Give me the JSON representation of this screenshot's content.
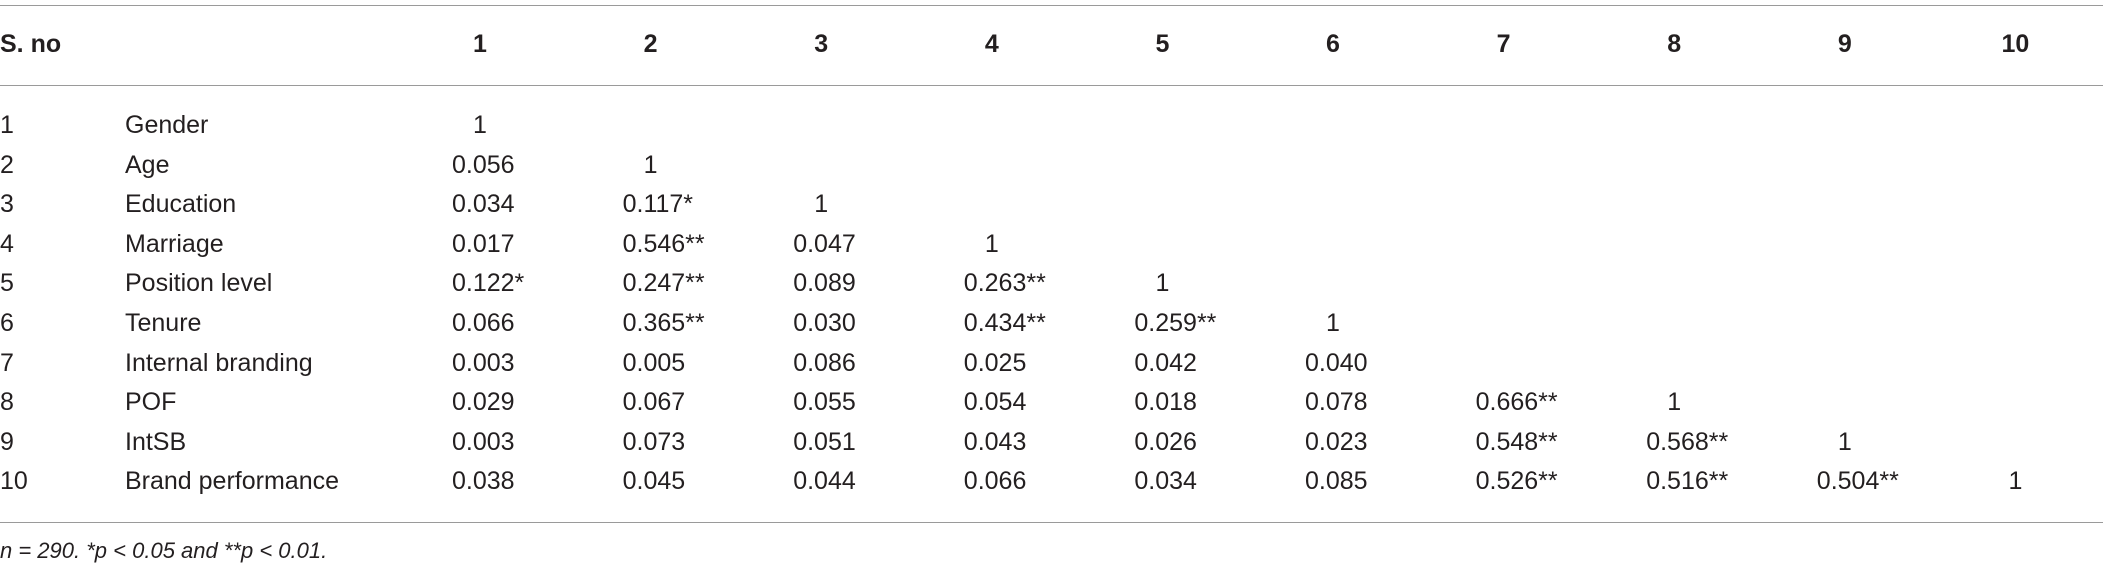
{
  "table": {
    "header": [
      "S. no",
      "1",
      "2",
      "3",
      "4",
      "5",
      "6",
      "7",
      "8",
      "9",
      "10"
    ],
    "rows": [
      {
        "no": "1",
        "name": "Gender",
        "cells": [
          "1"
        ]
      },
      {
        "no": "2",
        "name": "Age",
        "cells": [
          "0.056",
          "1"
        ]
      },
      {
        "no": "3",
        "name": "Education",
        "cells": [
          "0.034",
          "0.117*",
          "1"
        ]
      },
      {
        "no": "4",
        "name": "Marriage",
        "cells": [
          "0.017",
          "0.546**",
          "0.047",
          "1"
        ]
      },
      {
        "no": "5",
        "name": "Position level",
        "cells": [
          "0.122*",
          "0.247**",
          "0.089",
          "0.263**",
          "1"
        ]
      },
      {
        "no": "6",
        "name": "Tenure",
        "cells": [
          "0.066",
          "0.365**",
          "0.030",
          "0.434**",
          "0.259**",
          "1"
        ]
      },
      {
        "no": "7",
        "name": "Internal branding",
        "cells": [
          "0.003",
          "0.005",
          "0.086",
          "0.025",
          "0.042",
          "0.040"
        ]
      },
      {
        "no": "8",
        "name": "POF",
        "cells": [
          "0.029",
          "0.067",
          "0.055",
          "0.054",
          "0.018",
          "0.078",
          "0.666**",
          "1"
        ]
      },
      {
        "no": "9",
        "name": "IntSB",
        "cells": [
          "0.003",
          "0.073",
          "0.051",
          "0.043",
          "0.026",
          "0.023",
          "0.548**",
          "0.568**",
          "1"
        ]
      },
      {
        "no": "10",
        "name": "Brand performance",
        "cells": [
          "0.038",
          "0.045",
          "0.044",
          "0.066",
          "0.034",
          "0.085",
          "0.526**",
          "0.516**",
          "0.504**",
          "1"
        ]
      }
    ],
    "footnote": "n = 290. *p < 0.05 and **p < 0.01."
  }
}
